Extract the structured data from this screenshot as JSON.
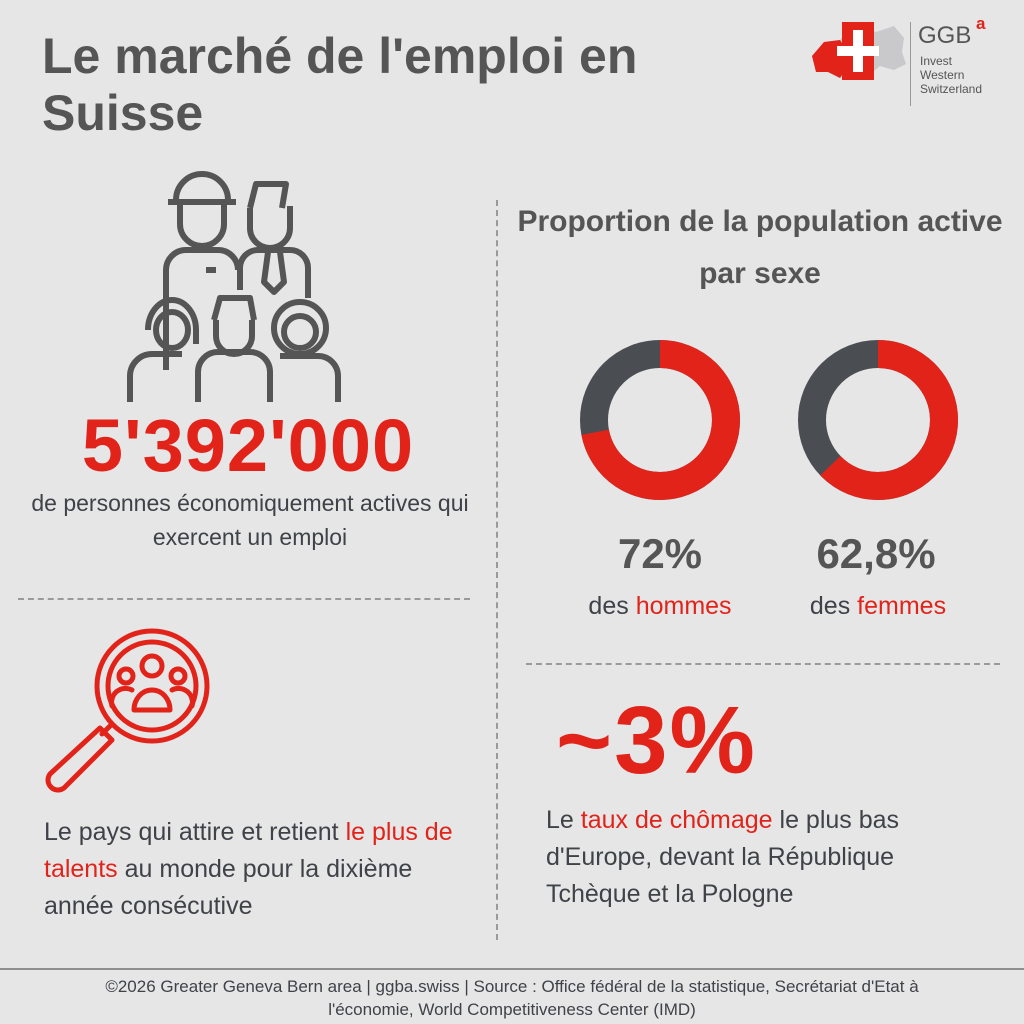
{
  "title": "Le marché de l'emploi en Suisse",
  "logo": {
    "brand": "GGB",
    "superscript": "a",
    "line1": "Invest",
    "line2": "Western",
    "line3": "Switzerland"
  },
  "workers": {
    "number": "5'392'000",
    "description": "de personnes économiquement actives qui exercent un emploi"
  },
  "proportion": {
    "title": "Proportion de la population active par sexe",
    "men": {
      "percent": "72%",
      "value": 72,
      "prefix": "des",
      "label": "hommes"
    },
    "women": {
      "percent": "62,8%",
      "value": 62.8,
      "prefix": "des",
      "label": "femmes"
    }
  },
  "talent": {
    "text_before": "Le pays qui attire et retient",
    "highlight": "le plus de talents",
    "text_after": "au monde pour la dixième année consécutive"
  },
  "unemployment": {
    "number": "~3%",
    "text_before": "Le",
    "highlight": "taux de chômage",
    "text_after": "le plus bas d'Europe, devant la République Tchèque et la Pologne"
  },
  "footer": {
    "line1": "©2026 Greater Geneva Bern area | ggba.swiss | Source : Office fédéral de la statistique, Secrétariat d'Etat à",
    "line2": "l'économie, World Competitiveness Center (IMD)"
  },
  "colors": {
    "accent": "#e2231a",
    "dark": "#4a4d52",
    "background": "#e6e6e7"
  }
}
